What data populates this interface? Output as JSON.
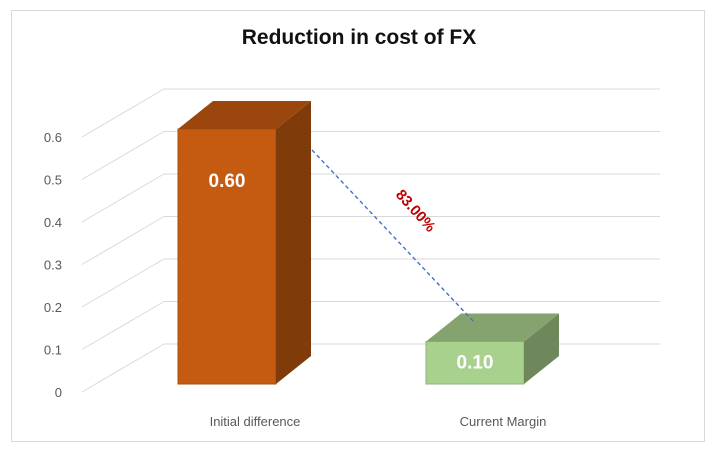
{
  "chart_data": {
    "type": "bar",
    "title": "Reduction in cost of FX",
    "categories": [
      "Initial difference",
      "Current Margin"
    ],
    "values": [
      0.6,
      0.1
    ],
    "data_labels": [
      "0.60",
      "0.10"
    ],
    "yticks": [
      "0",
      "0.1",
      "0.2",
      "0.3",
      "0.4",
      "0.5",
      "0.6"
    ],
    "ylim": [
      0,
      0.6
    ],
    "grid": true,
    "colors": {
      "bar1": "#c55a11",
      "bar2": "#a9d18e"
    },
    "annotation": {
      "text": "83.00%",
      "from": 0,
      "to": 1
    }
  }
}
